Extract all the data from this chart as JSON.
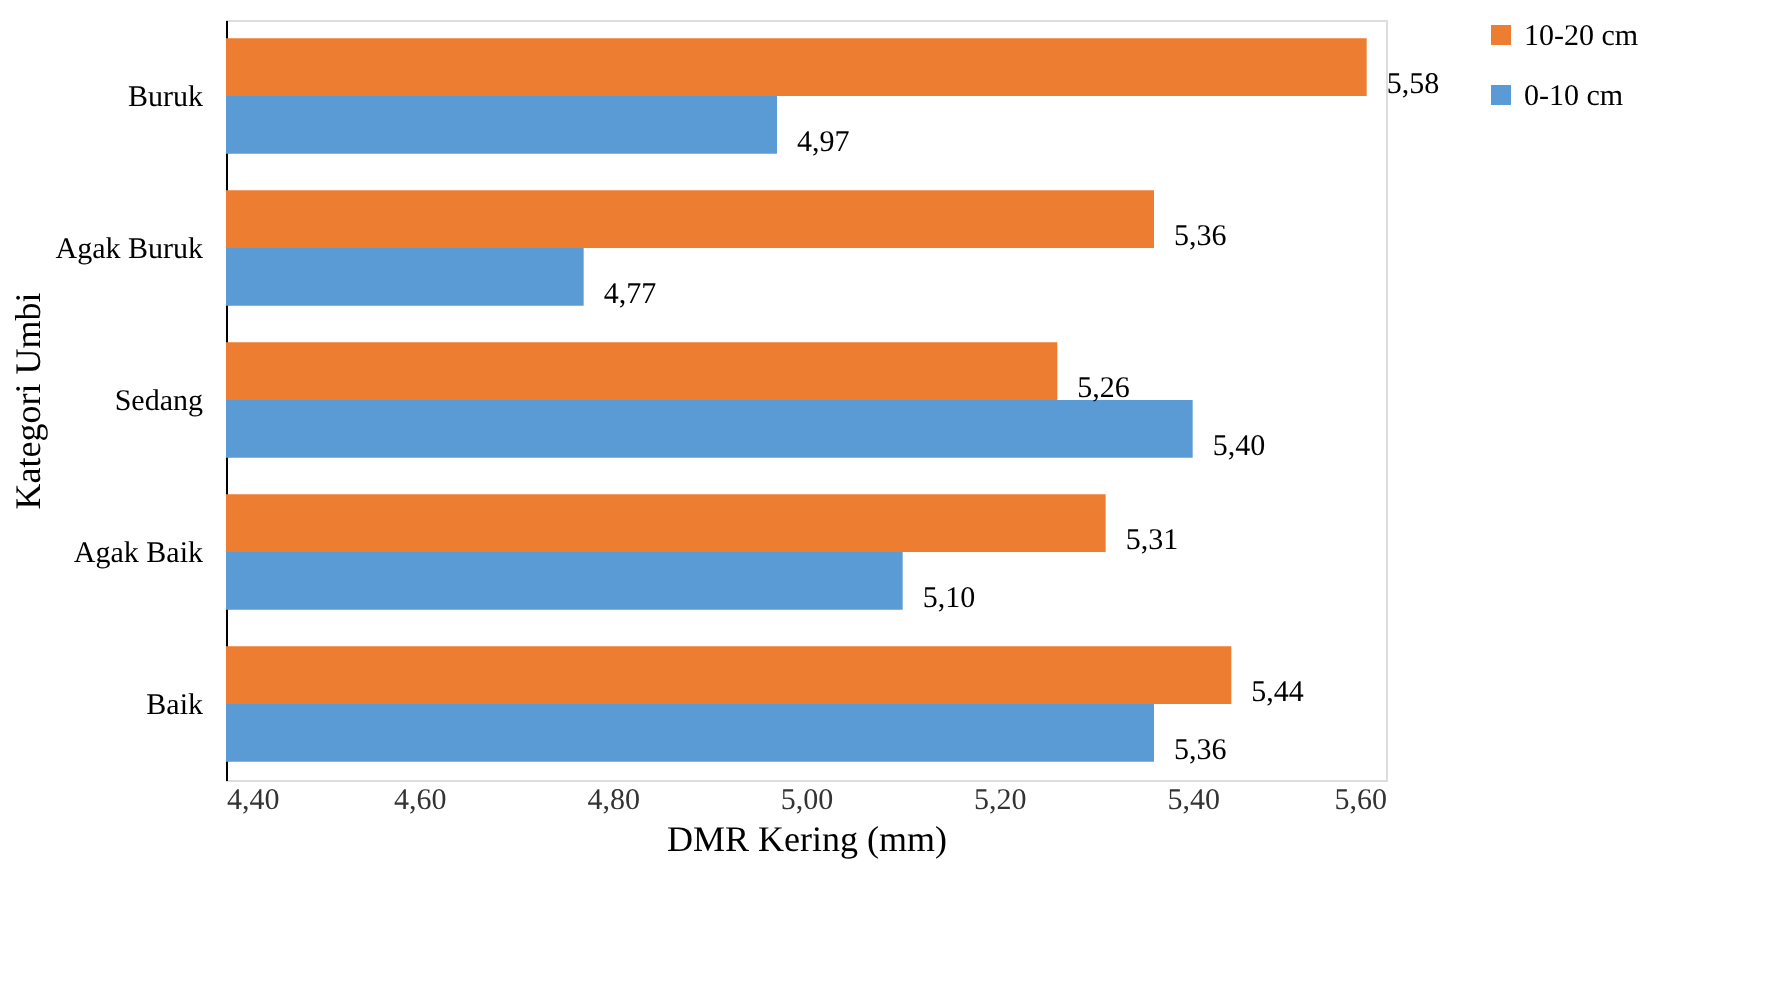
{
  "chart_data": {
    "type": "bar",
    "orientation": "horizontal",
    "xlabel": "DMR Kering (mm)",
    "ylabel": "Kategori  Umbi",
    "categories": [
      "Buruk",
      "Agak Buruk",
      "Sedang",
      "Agak Baik",
      "Baik"
    ],
    "series": [
      {
        "name": "10-20 cm",
        "color": "#ed7d31",
        "values": [
          5.58,
          5.36,
          5.26,
          5.31,
          5.44
        ],
        "value_labels": [
          "5,58",
          "5,36",
          "5,26",
          "5,31",
          "5,44"
        ]
      },
      {
        "name": "0-10 cm",
        "color": "#5b9bd5",
        "values": [
          4.97,
          4.77,
          5.4,
          5.1,
          5.36
        ],
        "value_labels": [
          "4,97",
          "4,77",
          "5,40",
          "5,10",
          "5,36"
        ]
      }
    ],
    "xlim": [
      4.4,
      5.6
    ],
    "xticks": [
      {
        "value": 4.4,
        "label": "4,40"
      },
      {
        "value": 4.6,
        "label": "4,60"
      },
      {
        "value": 4.8,
        "label": "4,80"
      },
      {
        "value": 5.0,
        "label": "5,00"
      },
      {
        "value": 5.2,
        "label": "5,20"
      },
      {
        "value": 5.4,
        "label": "5,40"
      },
      {
        "value": 5.6,
        "label": "5,60"
      }
    ],
    "grid": false,
    "legend": "right"
  }
}
